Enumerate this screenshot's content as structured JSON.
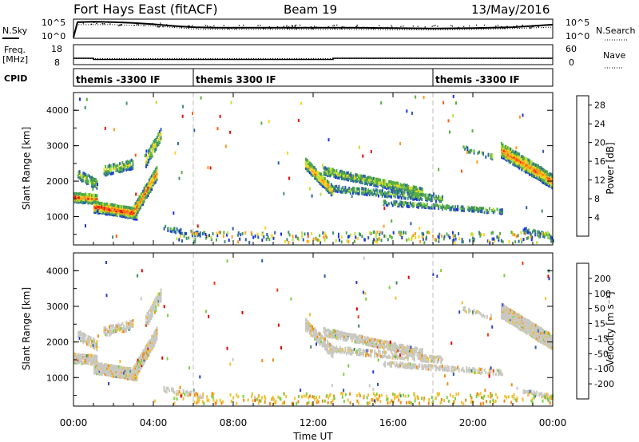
{
  "header": {
    "station": "Fort Hays East (fitACF)",
    "beam": "Beam 19",
    "date": "13/May/2016"
  },
  "noise_panel": {
    "left_label": "N.Sky",
    "right_label": "N.Search",
    "left_ticks": [
      "10^5",
      "10^0"
    ],
    "right_ticks": [
      "10^5",
      "10^0"
    ]
  },
  "freq_panel": {
    "left_label_1": "Freq.",
    "left_label_2": "[MHz]",
    "right_label": "Nave",
    "left_ticks": [
      "18",
      "8"
    ],
    "right_ticks": [
      "60",
      "0"
    ]
  },
  "cpid_panel": {
    "label": "CPID",
    "segments": [
      {
        "name": "themis -3300 IF",
        "start_h": 0
      },
      {
        "name": "themis 3300 IF",
        "start_h": 6
      },
      {
        "name": "themis -3300 IF",
        "start_h": 18
      }
    ]
  },
  "colors": {
    "power_scale": [
      "#1a2ee6",
      "#2a5fb0",
      "#3f8f6a",
      "#55b040",
      "#b8e23a",
      "#ffd31a",
      "#ff9a1a",
      "#ff5a10",
      "#e81010"
    ],
    "velocity_scale": [
      "#2a3fd0",
      "#2c5aa8",
      "#3c8a60",
      "#7cd040",
      "#c8c8c8",
      "#f0c030",
      "#f08a10",
      "#f03a10",
      "#e00000"
    ],
    "echo_gray": "#c9c9c2"
  },
  "chart_data": [
    {
      "type": "line",
      "title": "N.Sky / N.Search",
      "x_range": [
        0,
        24
      ],
      "series": [
        {
          "name": "N.Sky",
          "x": [
            0,
            0.2,
            1,
            2,
            3,
            4,
            5,
            6,
            7,
            8,
            10,
            12,
            14,
            16,
            18,
            20,
            22,
            23,
            24
          ],
          "y": [
            0.2,
            3.8,
            3.9,
            3.8,
            3.6,
            3.3,
            2.9,
            2.6,
            2.5,
            2.5,
            2.5,
            2.5,
            2.5,
            2.4,
            2.3,
            2.4,
            2.6,
            2.9,
            3.2
          ]
        },
        {
          "name": "N.Search",
          "x": [
            0,
            0.2,
            2,
            4,
            6,
            8,
            10,
            12,
            14,
            16,
            18,
            20,
            22,
            24
          ],
          "y": [
            0.2,
            3.2,
            3.2,
            2.9,
            2.2,
            2.1,
            2.1,
            2.1,
            2.1,
            2.0,
            2.0,
            2.1,
            2.3,
            2.6
          ]
        }
      ]
    },
    {
      "type": "line",
      "title": "Freq. / Nave",
      "x_range": [
        0,
        24
      ],
      "series": [
        {
          "name": "Freq.",
          "x": [
            0,
            1,
            1,
            13,
            13,
            24
          ],
          "y": [
            11.2,
            11.2,
            10.6,
            10.6,
            11.2,
            11.2
          ]
        },
        {
          "name": "Nave",
          "x": [
            0,
            24
          ],
          "y": [
            18,
            18
          ]
        }
      ]
    },
    {
      "type": "heatmap",
      "panel": "power",
      "ylabel": "Slant Range [km]",
      "xlabel": "Time UT",
      "x_ticks": [
        "00:00",
        "04:00",
        "08:00",
        "12:00",
        "16:00",
        "20:00",
        "00:00"
      ],
      "y_ticks": [
        "1000",
        "2000",
        "3000",
        "4000"
      ],
      "ylim": [
        200,
        4500
      ],
      "colorbar_label": "Power [dB]",
      "colorbar_ticks": [
        "4",
        "8",
        "12",
        "16",
        "20",
        "24",
        "28"
      ],
      "colorbar_range": [
        0,
        30
      ]
    },
    {
      "type": "heatmap",
      "panel": "velocity",
      "ylabel": "Slant Range [km]",
      "xlabel": "Time UT",
      "x_ticks": [
        "00:00",
        "04:00",
        "08:00",
        "12:00",
        "16:00",
        "20:00",
        "00:00"
      ],
      "y_ticks": [
        "1000",
        "2000",
        "3000",
        "4000"
      ],
      "ylim": [
        200,
        4500
      ],
      "colorbar_label": "Velocity [m s⁻¹]",
      "colorbar_ticks": [
        "200",
        "100",
        "50",
        "15",
        "-15",
        "-50",
        "-100",
        "-200"
      ]
    }
  ]
}
